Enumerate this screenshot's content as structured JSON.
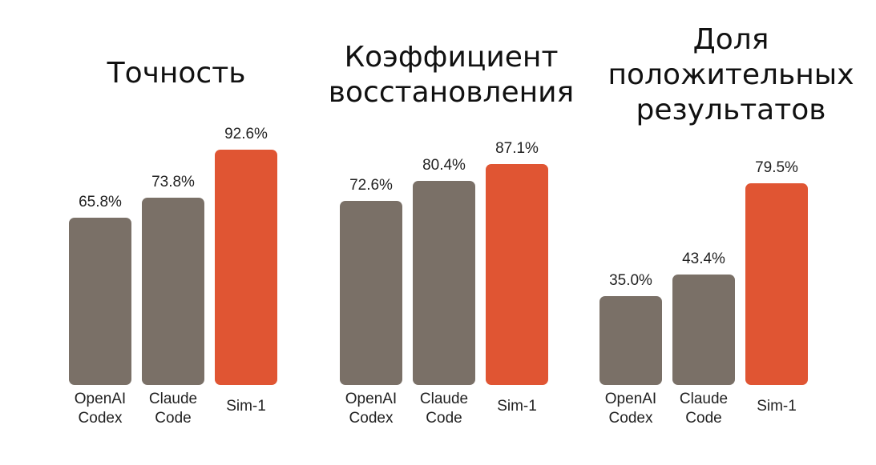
{
  "colors": {
    "competitor": "#7a7067",
    "highlight": "#e05533",
    "background": "#ffffff",
    "text": "#222222"
  },
  "chart_data": [
    {
      "type": "bar",
      "title": [
        "Точность"
      ],
      "categories": [
        [
          "OpenAI",
          "Codex"
        ],
        [
          "Claude",
          "Code"
        ],
        [
          "Sim-1"
        ]
      ],
      "values": [
        65.8,
        73.8,
        92.6
      ],
      "value_labels": [
        "65.8%",
        "73.8%",
        "92.6%"
      ],
      "highlight_index": 2
    },
    {
      "type": "bar",
      "title": [
        "Коэффициент",
        "восстановления"
      ],
      "categories": [
        [
          "OpenAI",
          "Codex"
        ],
        [
          "Claude",
          "Code"
        ],
        [
          "Sim-1"
        ]
      ],
      "values": [
        72.6,
        80.4,
        87.1
      ],
      "value_labels": [
        "72.6%",
        "80.4%",
        "87.1%"
      ],
      "highlight_index": 2
    },
    {
      "type": "bar",
      "title": [
        "Доля",
        "положительных",
        "результатов"
      ],
      "categories": [
        [
          "OpenAI",
          "Codex"
        ],
        [
          "Claude",
          "Code"
        ],
        [
          "Sim-1"
        ]
      ],
      "values": [
        35.0,
        43.4,
        79.5
      ],
      "value_labels": [
        "35.0%",
        "43.4%",
        "79.5%"
      ],
      "highlight_index": 2
    }
  ]
}
